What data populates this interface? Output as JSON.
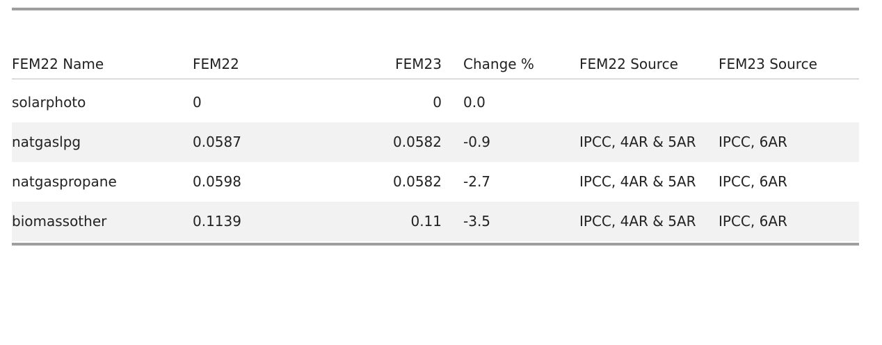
{
  "table": {
    "headers": {
      "name": "FEM22 Name",
      "fem22": "FEM22",
      "fem23": "FEM23",
      "change": "Change %",
      "fem22_source": "FEM22 Source",
      "fem23_source": "FEM23 Source"
    },
    "rows": [
      {
        "name": "solarphoto",
        "fem22": "0",
        "fem23": "0",
        "change": "0.0",
        "fem22_source": "",
        "fem23_source": ""
      },
      {
        "name": "natgaslpg",
        "fem22": "0.0587",
        "fem23": "0.0582",
        "change": "-0.9",
        "fem22_source": "IPCC, 4AR & 5AR",
        "fem23_source": "IPCC, 6AR"
      },
      {
        "name": "natgaspropane",
        "fem22": "0.0598",
        "fem23": "0.0582",
        "change": "-2.7",
        "fem22_source": "IPCC, 4AR & 5AR",
        "fem23_source": "IPCC, 6AR"
      },
      {
        "name": "biomassother",
        "fem22": "0.1139",
        "fem23": "0.11",
        "change": "-3.5",
        "fem22_source": "IPCC, 4AR & 5AR",
        "fem23_source": "IPCC, 6AR"
      }
    ]
  }
}
